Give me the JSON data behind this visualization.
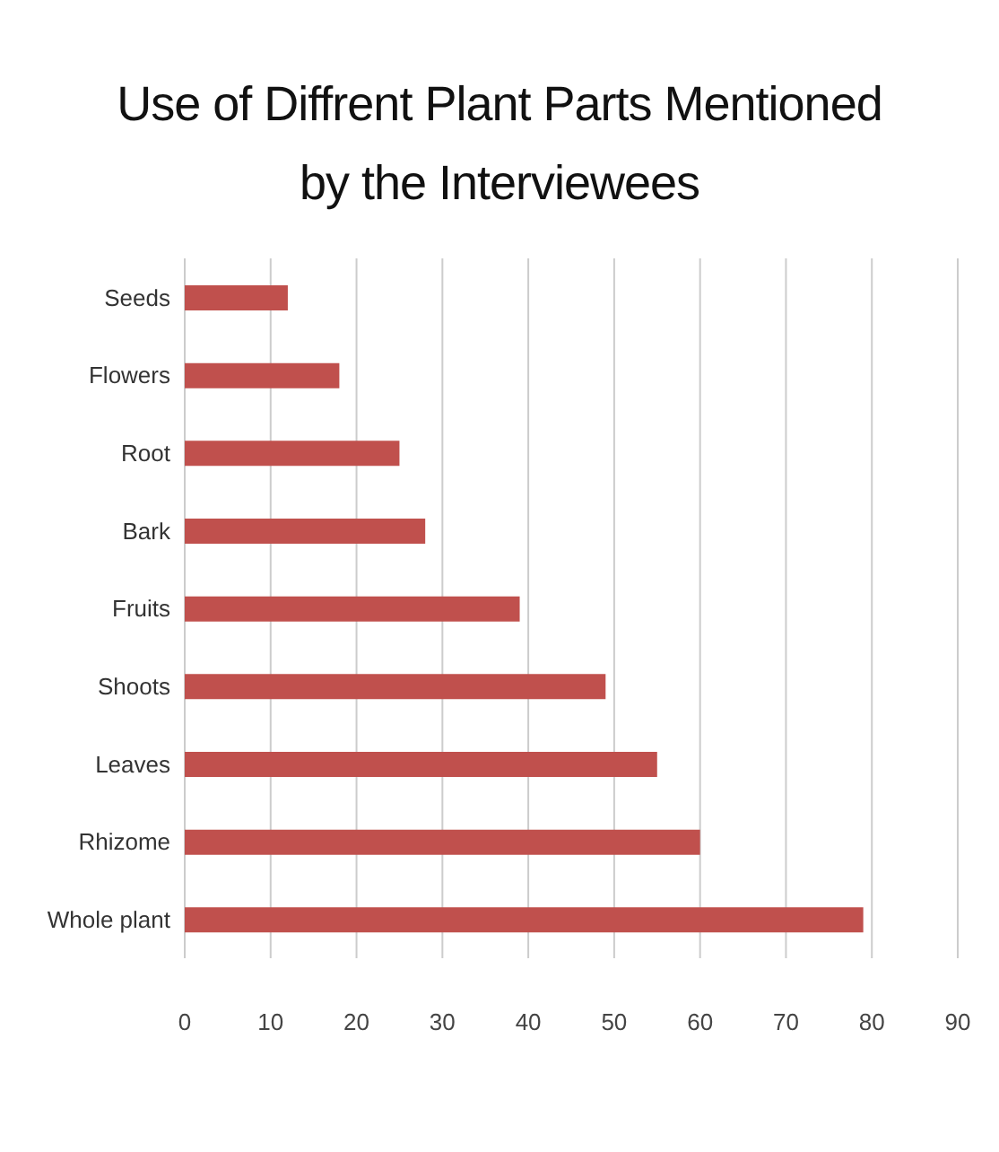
{
  "chart_data": {
    "type": "bar",
    "orientation": "horizontal",
    "title": "Use of Diffrent Plant Parts Mentioned by the Interviewees",
    "categories": [
      "Seeds",
      "Flowers",
      "Root",
      "Bark",
      "Fruits",
      "Shoots",
      "Leaves",
      "Rhizome",
      "Whole plant"
    ],
    "values": [
      12,
      18,
      25,
      28,
      39,
      49,
      55,
      60,
      79
    ],
    "color": "#c0504d",
    "xlim": [
      0,
      90
    ],
    "xticks": [
      0,
      10,
      20,
      30,
      40,
      50,
      60,
      70,
      80,
      90
    ],
    "grid": "x"
  }
}
